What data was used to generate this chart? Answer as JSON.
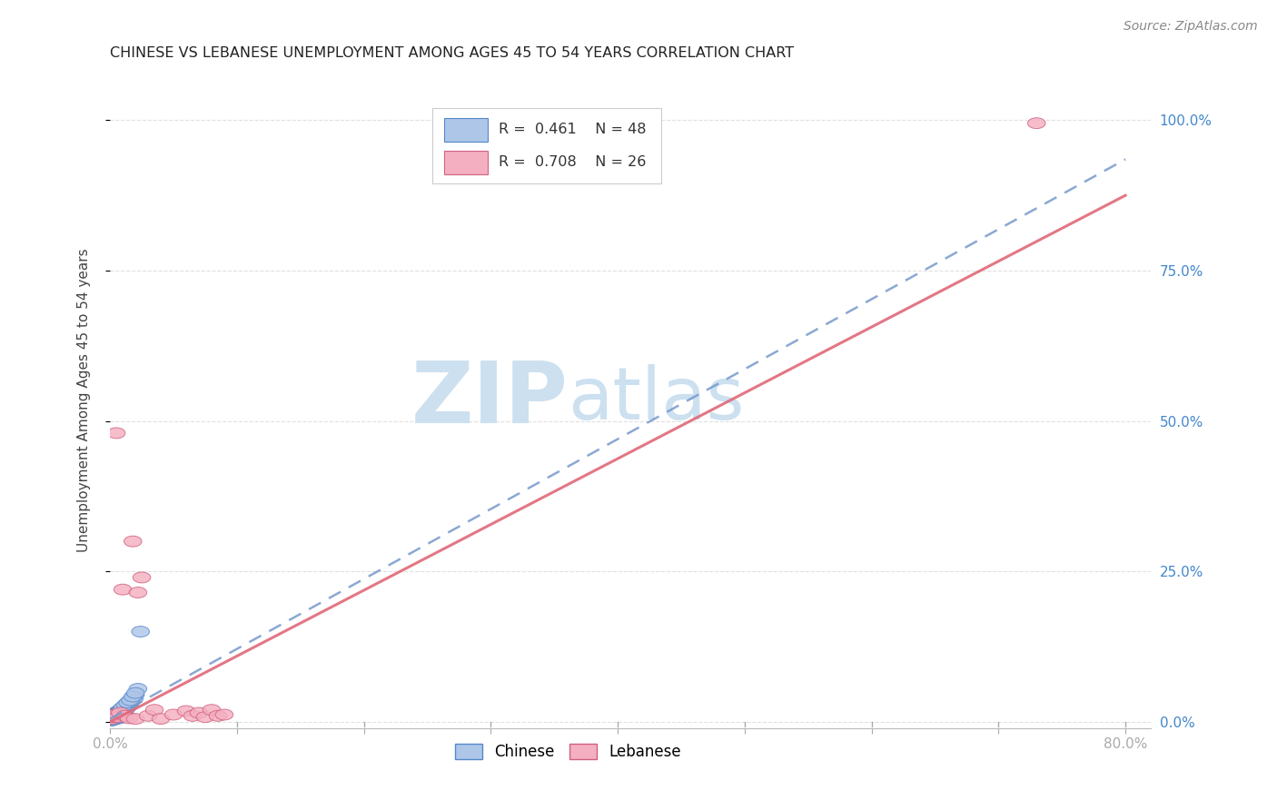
{
  "title": "CHINESE VS LEBANESE UNEMPLOYMENT AMONG AGES 45 TO 54 YEARS CORRELATION CHART",
  "source": "Source: ZipAtlas.com",
  "ylabel": "Unemployment Among Ages 45 to 54 years",
  "xlim": [
    0.0,
    0.82
  ],
  "ylim": [
    -0.01,
    1.08
  ],
  "xticks": [
    0.0,
    0.1,
    0.2,
    0.3,
    0.4,
    0.5,
    0.6,
    0.7,
    0.8
  ],
  "yticks": [
    0.0,
    0.25,
    0.5,
    0.75,
    1.0
  ],
  "ytick_labels": [
    "0.0%",
    "25.0%",
    "50.0%",
    "75.0%",
    "100.0%"
  ],
  "xtick_labels_show": [
    "0.0%",
    "80.0%"
  ],
  "chinese_color": "#aec6e8",
  "lebanese_color": "#f4afc0",
  "chinese_edge_color": "#5588cc",
  "lebanese_edge_color": "#d06080",
  "chinese_line_color": "#7799cc",
  "lebanese_line_color": "#e06878",
  "chinese_R": 0.461,
  "chinese_N": 48,
  "lebanese_R": 0.708,
  "lebanese_N": 26,
  "chinese_line_x0": 0.0,
  "chinese_line_y0": 0.005,
  "chinese_line_x1": 0.8,
  "chinese_line_y1": 0.935,
  "lebanese_line_x0": 0.0,
  "lebanese_line_y0": 0.0,
  "lebanese_line_x1": 0.8,
  "lebanese_line_y1": 0.875,
  "chinese_x": [
    0.001,
    0.001,
    0.002,
    0.002,
    0.003,
    0.003,
    0.003,
    0.004,
    0.004,
    0.005,
    0.005,
    0.006,
    0.006,
    0.007,
    0.007,
    0.007,
    0.008,
    0.008,
    0.009,
    0.01,
    0.01,
    0.011,
    0.012,
    0.013,
    0.014,
    0.015,
    0.016,
    0.017,
    0.018,
    0.019,
    0.02,
    0.022,
    0.024,
    0.001,
    0.002,
    0.003,
    0.004,
    0.005,
    0.006,
    0.007,
    0.008,
    0.009,
    0.01,
    0.012,
    0.014,
    0.016,
    0.018,
    0.02
  ],
  "chinese_y": [
    0.003,
    0.006,
    0.005,
    0.01,
    0.004,
    0.008,
    0.012,
    0.006,
    0.015,
    0.005,
    0.014,
    0.007,
    0.016,
    0.006,
    0.01,
    0.018,
    0.008,
    0.02,
    0.015,
    0.008,
    0.02,
    0.018,
    0.025,
    0.022,
    0.03,
    0.028,
    0.032,
    0.035,
    0.04,
    0.038,
    0.045,
    0.055,
    0.15,
    0.002,
    0.004,
    0.007,
    0.009,
    0.011,
    0.013,
    0.016,
    0.018,
    0.021,
    0.024,
    0.028,
    0.032,
    0.036,
    0.042,
    0.048
  ],
  "lebanese_x": [
    0.001,
    0.002,
    0.003,
    0.004,
    0.005,
    0.006,
    0.008,
    0.01,
    0.012,
    0.015,
    0.018,
    0.02,
    0.022,
    0.025,
    0.03,
    0.035,
    0.04,
    0.05,
    0.06,
    0.065,
    0.07,
    0.075,
    0.08,
    0.085,
    0.09,
    0.73
  ],
  "lebanese_y": [
    0.005,
    0.008,
    0.01,
    0.012,
    0.48,
    0.008,
    0.015,
    0.22,
    0.01,
    0.006,
    0.3,
    0.005,
    0.215,
    0.24,
    0.01,
    0.02,
    0.005,
    0.012,
    0.018,
    0.01,
    0.015,
    0.008,
    0.02,
    0.01,
    0.012,
    0.995
  ],
  "watermark_zip": "ZIP",
  "watermark_atlas": "atlas",
  "watermark_color": "#cce0f0",
  "background_color": "#ffffff",
  "grid_color": "#e0e0e0",
  "title_color": "#222222",
  "axis_label_color": "#444444",
  "blue_tick_color": "#4488cc",
  "legend_border_color": "#cccccc"
}
